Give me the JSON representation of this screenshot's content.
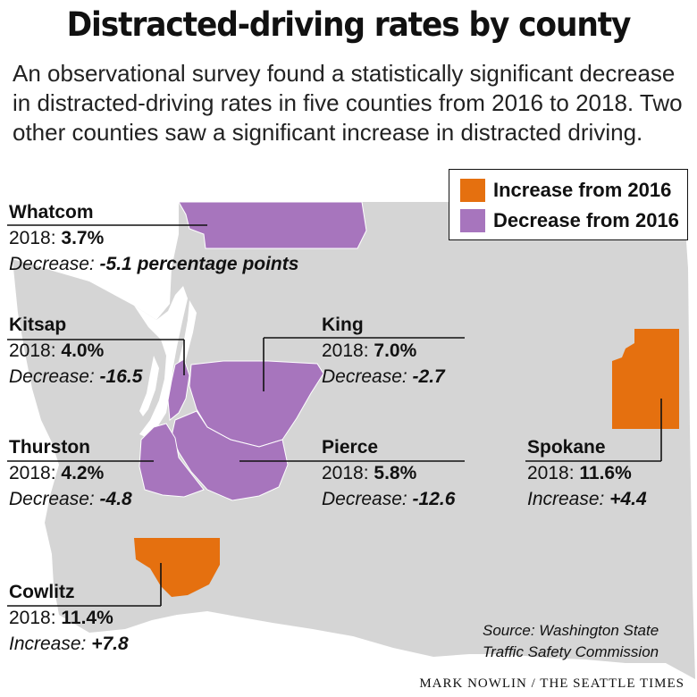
{
  "title": "Distracted-driving rates by county",
  "intro": "An observational survey found a statistically significant decrease in distracted-driving rates in five counties from 2016 to 2018. Two other counties saw a significant increase in distracted driving.",
  "legend": {
    "increase": {
      "label": "Increase from 2016",
      "color": "#e5700f"
    },
    "decrease": {
      "label": "Decrease from 2016",
      "color": "#a775bd"
    }
  },
  "colors": {
    "land": "#d5d5d5",
    "water": "#ffffff",
    "leader": "#111111"
  },
  "counties": {
    "whatcom": {
      "name": "Whatcom",
      "prefix": "2018: ",
      "rate": "3.7%",
      "change_word": "Decrease: ",
      "change": "-5.1 percentage points",
      "status": "decrease"
    },
    "kitsap": {
      "name": "Kitsap",
      "prefix": "2018: ",
      "rate": "4.0%",
      "change_word": "Decrease: ",
      "change": "-16.5",
      "status": "decrease"
    },
    "king": {
      "name": "King",
      "prefix": "2018: ",
      "rate": "7.0%",
      "change_word": "Decrease: ",
      "change": "-2.7",
      "status": "decrease"
    },
    "thurston": {
      "name": "Thurston",
      "prefix": "2018: ",
      "rate": "4.2%",
      "change_word": "Decrease: ",
      "change": "-4.8",
      "status": "decrease"
    },
    "pierce": {
      "name": "Pierce",
      "prefix": "2018: ",
      "rate": "5.8%",
      "change_word": "Decrease: ",
      "change": "-12.6",
      "status": "decrease"
    },
    "spokane": {
      "name": "Spokane",
      "prefix": "2018: ",
      "rate": "11.6%",
      "change_word": "Increase: ",
      "change": "+4.4",
      "status": "increase"
    },
    "cowlitz": {
      "name": "Cowlitz",
      "prefix": "2018: ",
      "rate": "11.4%",
      "change_word": "Increase: ",
      "change": "+7.8",
      "status": "increase"
    }
  },
  "source": {
    "line1": "Source: Washington State",
    "line2": "Traffic Safety Commission"
  },
  "credit": "MARK NOWLIN / THE SEATTLE TIMES"
}
